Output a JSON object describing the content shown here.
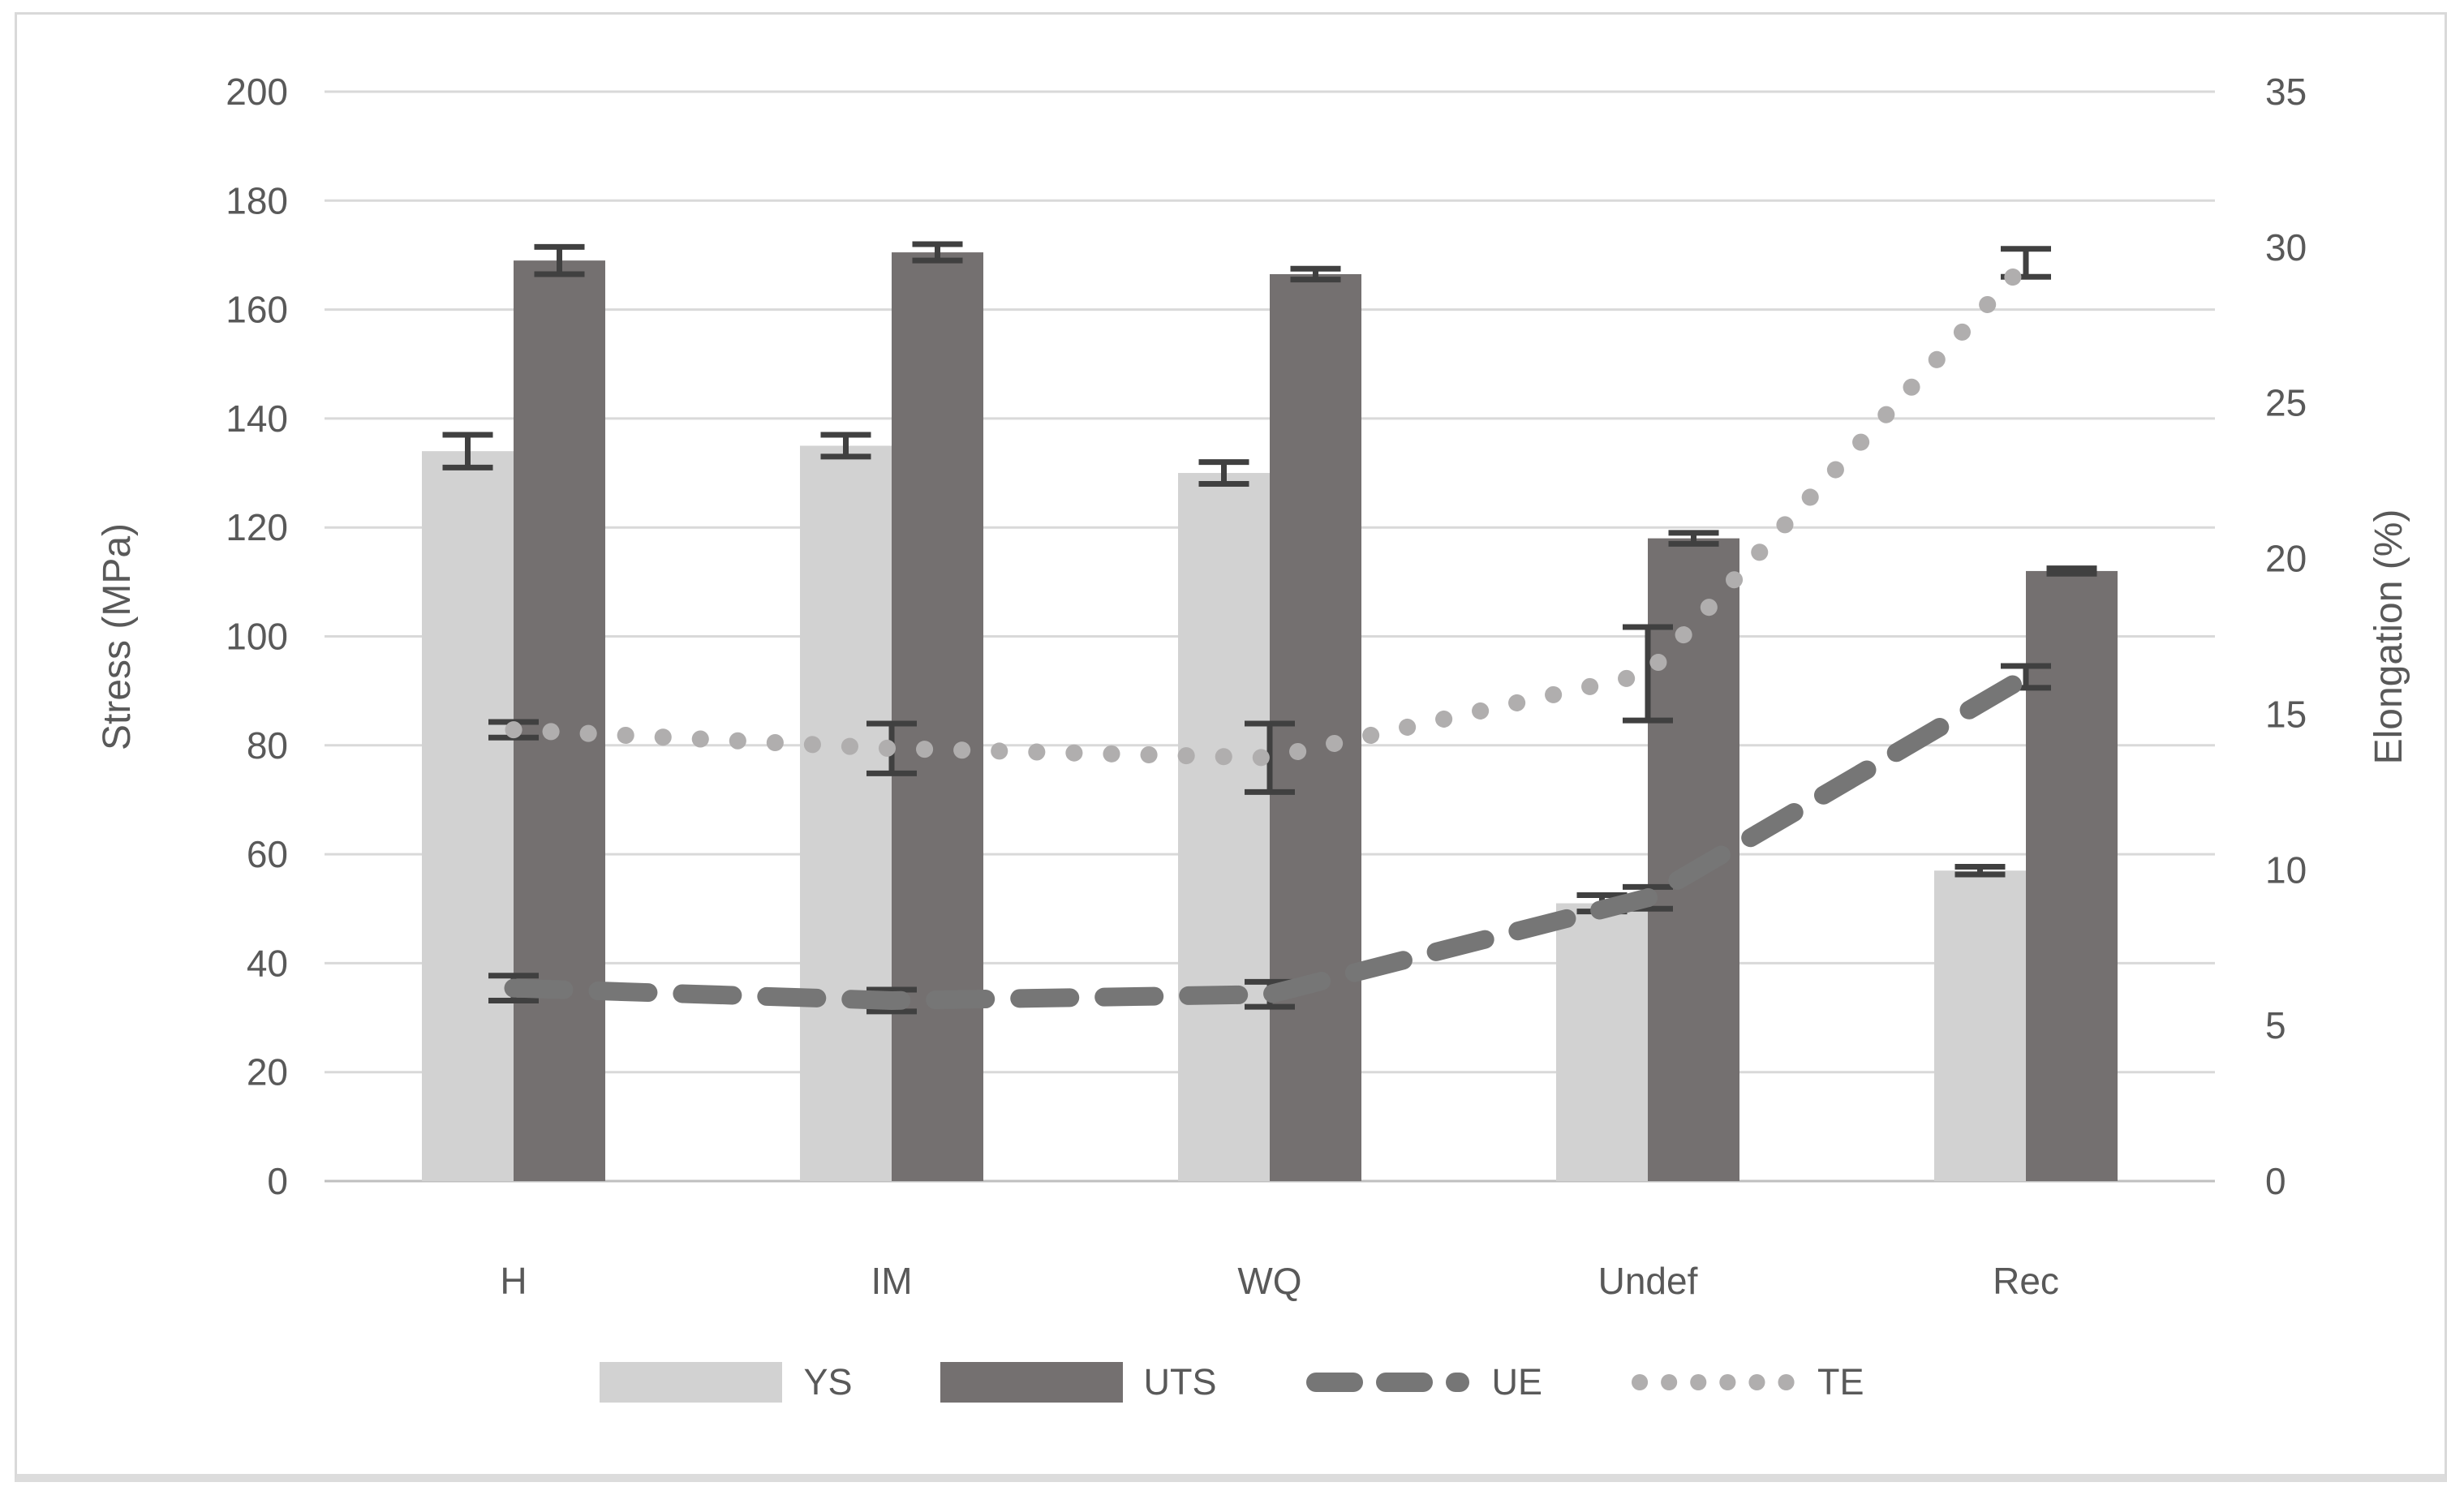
{
  "chart_data": {
    "type": "bar+line combo",
    "title": "",
    "categories": [
      "H",
      "IM",
      "WQ",
      "Undef",
      "Rec"
    ],
    "left_axis": {
      "label": "Stress (MPa)",
      "min": 0,
      "max": 200,
      "tick_step": 20,
      "ticks": [
        200,
        180,
        160,
        140,
        120,
        100,
        80,
        60,
        40,
        20,
        0
      ]
    },
    "right_axis": {
      "label": "Elongation (%)",
      "min": 0,
      "max": 35,
      "tick_step": 5,
      "ticks": [
        35,
        30,
        25,
        20,
        15,
        10,
        5,
        0
      ]
    },
    "grid": true,
    "legend_position": "bottom",
    "series": [
      {
        "name": "YS",
        "type": "bar",
        "axis": "left",
        "color": "#d2d2d2",
        "values": [
          134,
          135,
          130,
          51,
          57
        ],
        "errors": [
          3,
          2,
          2,
          1.5,
          0.7
        ]
      },
      {
        "name": "UTS",
        "type": "bar",
        "axis": "left",
        "color": "#747070",
        "values": [
          169,
          170.5,
          166.5,
          118,
          112
        ],
        "errors": [
          2.5,
          1.5,
          1,
          1,
          0.5
        ]
      },
      {
        "name": "UE",
        "type": "line-dashed",
        "axis": "right",
        "color": "#767676",
        "values": [
          6.2,
          5.8,
          6.0,
          9.1,
          16.2
        ],
        "errors": [
          0.4,
          0.35,
          0.4,
          0.35,
          0.35
        ]
      },
      {
        "name": "TE",
        "type": "line-dotted",
        "axis": "right",
        "color": "#b0aeae",
        "values": [
          14.5,
          13.9,
          13.6,
          16.3,
          29.5
        ],
        "errors": [
          0.25,
          0.8,
          1.1,
          1.5,
          0.45
        ]
      }
    ],
    "colors": {
      "gridline": "#d9d9d9",
      "axis_line": "#bfbfbf",
      "error_bar": "#404040",
      "text": "#595959"
    }
  }
}
